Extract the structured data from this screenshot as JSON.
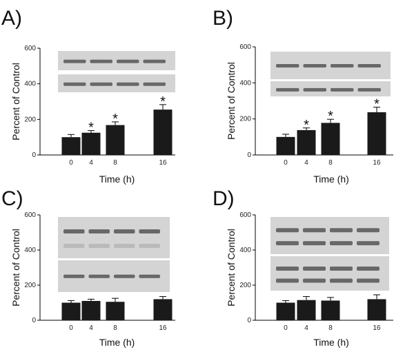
{
  "chart_data": [
    {
      "panel": "A)",
      "type": "bar",
      "categories": [
        "0",
        "4",
        "8",
        "16"
      ],
      "values": [
        100,
        125,
        168,
        255
      ],
      "errors": [
        15,
        12,
        18,
        28
      ],
      "significant": [
        false,
        true,
        true,
        true
      ],
      "marker": "*",
      "xlabel": "Time   (h)",
      "ylabel": "Percent of Control",
      "yticks": [
        "0",
        "200",
        "400",
        "600"
      ],
      "ylim": [
        0,
        600
      ],
      "grid": false
    },
    {
      "panel": "B)",
      "type": "bar",
      "categories": [
        "0",
        "4",
        "8",
        "16"
      ],
      "values": [
        100,
        138,
        178,
        237
      ],
      "errors": [
        15,
        12,
        20,
        28
      ],
      "significant": [
        false,
        true,
        true,
        true
      ],
      "marker": "*",
      "xlabel": "Time   (h)",
      "ylabel": "Percent of Control",
      "yticks": [
        "0",
        "200",
        "400",
        "600"
      ],
      "ylim": [
        0,
        600
      ],
      "grid": false
    },
    {
      "panel": "C)",
      "type": "bar",
      "categories": [
        "0",
        "4",
        "8",
        "16"
      ],
      "values": [
        100,
        110,
        105,
        120
      ],
      "errors": [
        12,
        10,
        20,
        15
      ],
      "significant": [
        false,
        false,
        false,
        false
      ],
      "marker": "*",
      "xlabel": "Time   (h)",
      "ylabel": "Percent of Control",
      "yticks": [
        "0",
        "200",
        "400",
        "600"
      ],
      "ylim": [
        0,
        600
      ],
      "grid": false
    },
    {
      "panel": "D)",
      "type": "bar",
      "categories": [
        "0",
        "4",
        "8",
        "16"
      ],
      "values": [
        100,
        115,
        112,
        120
      ],
      "errors": [
        12,
        20,
        18,
        25
      ],
      "significant": [
        false,
        false,
        false,
        false
      ],
      "marker": "*",
      "xlabel": "Time   (h)",
      "ylabel": "Percent of Control",
      "yticks": [
        "0",
        "200",
        "400",
        "600"
      ],
      "ylim": [
        0,
        600
      ],
      "grid": false
    }
  ],
  "blot_color": "#d4d4d4",
  "bar_color": "#1a1a1a"
}
